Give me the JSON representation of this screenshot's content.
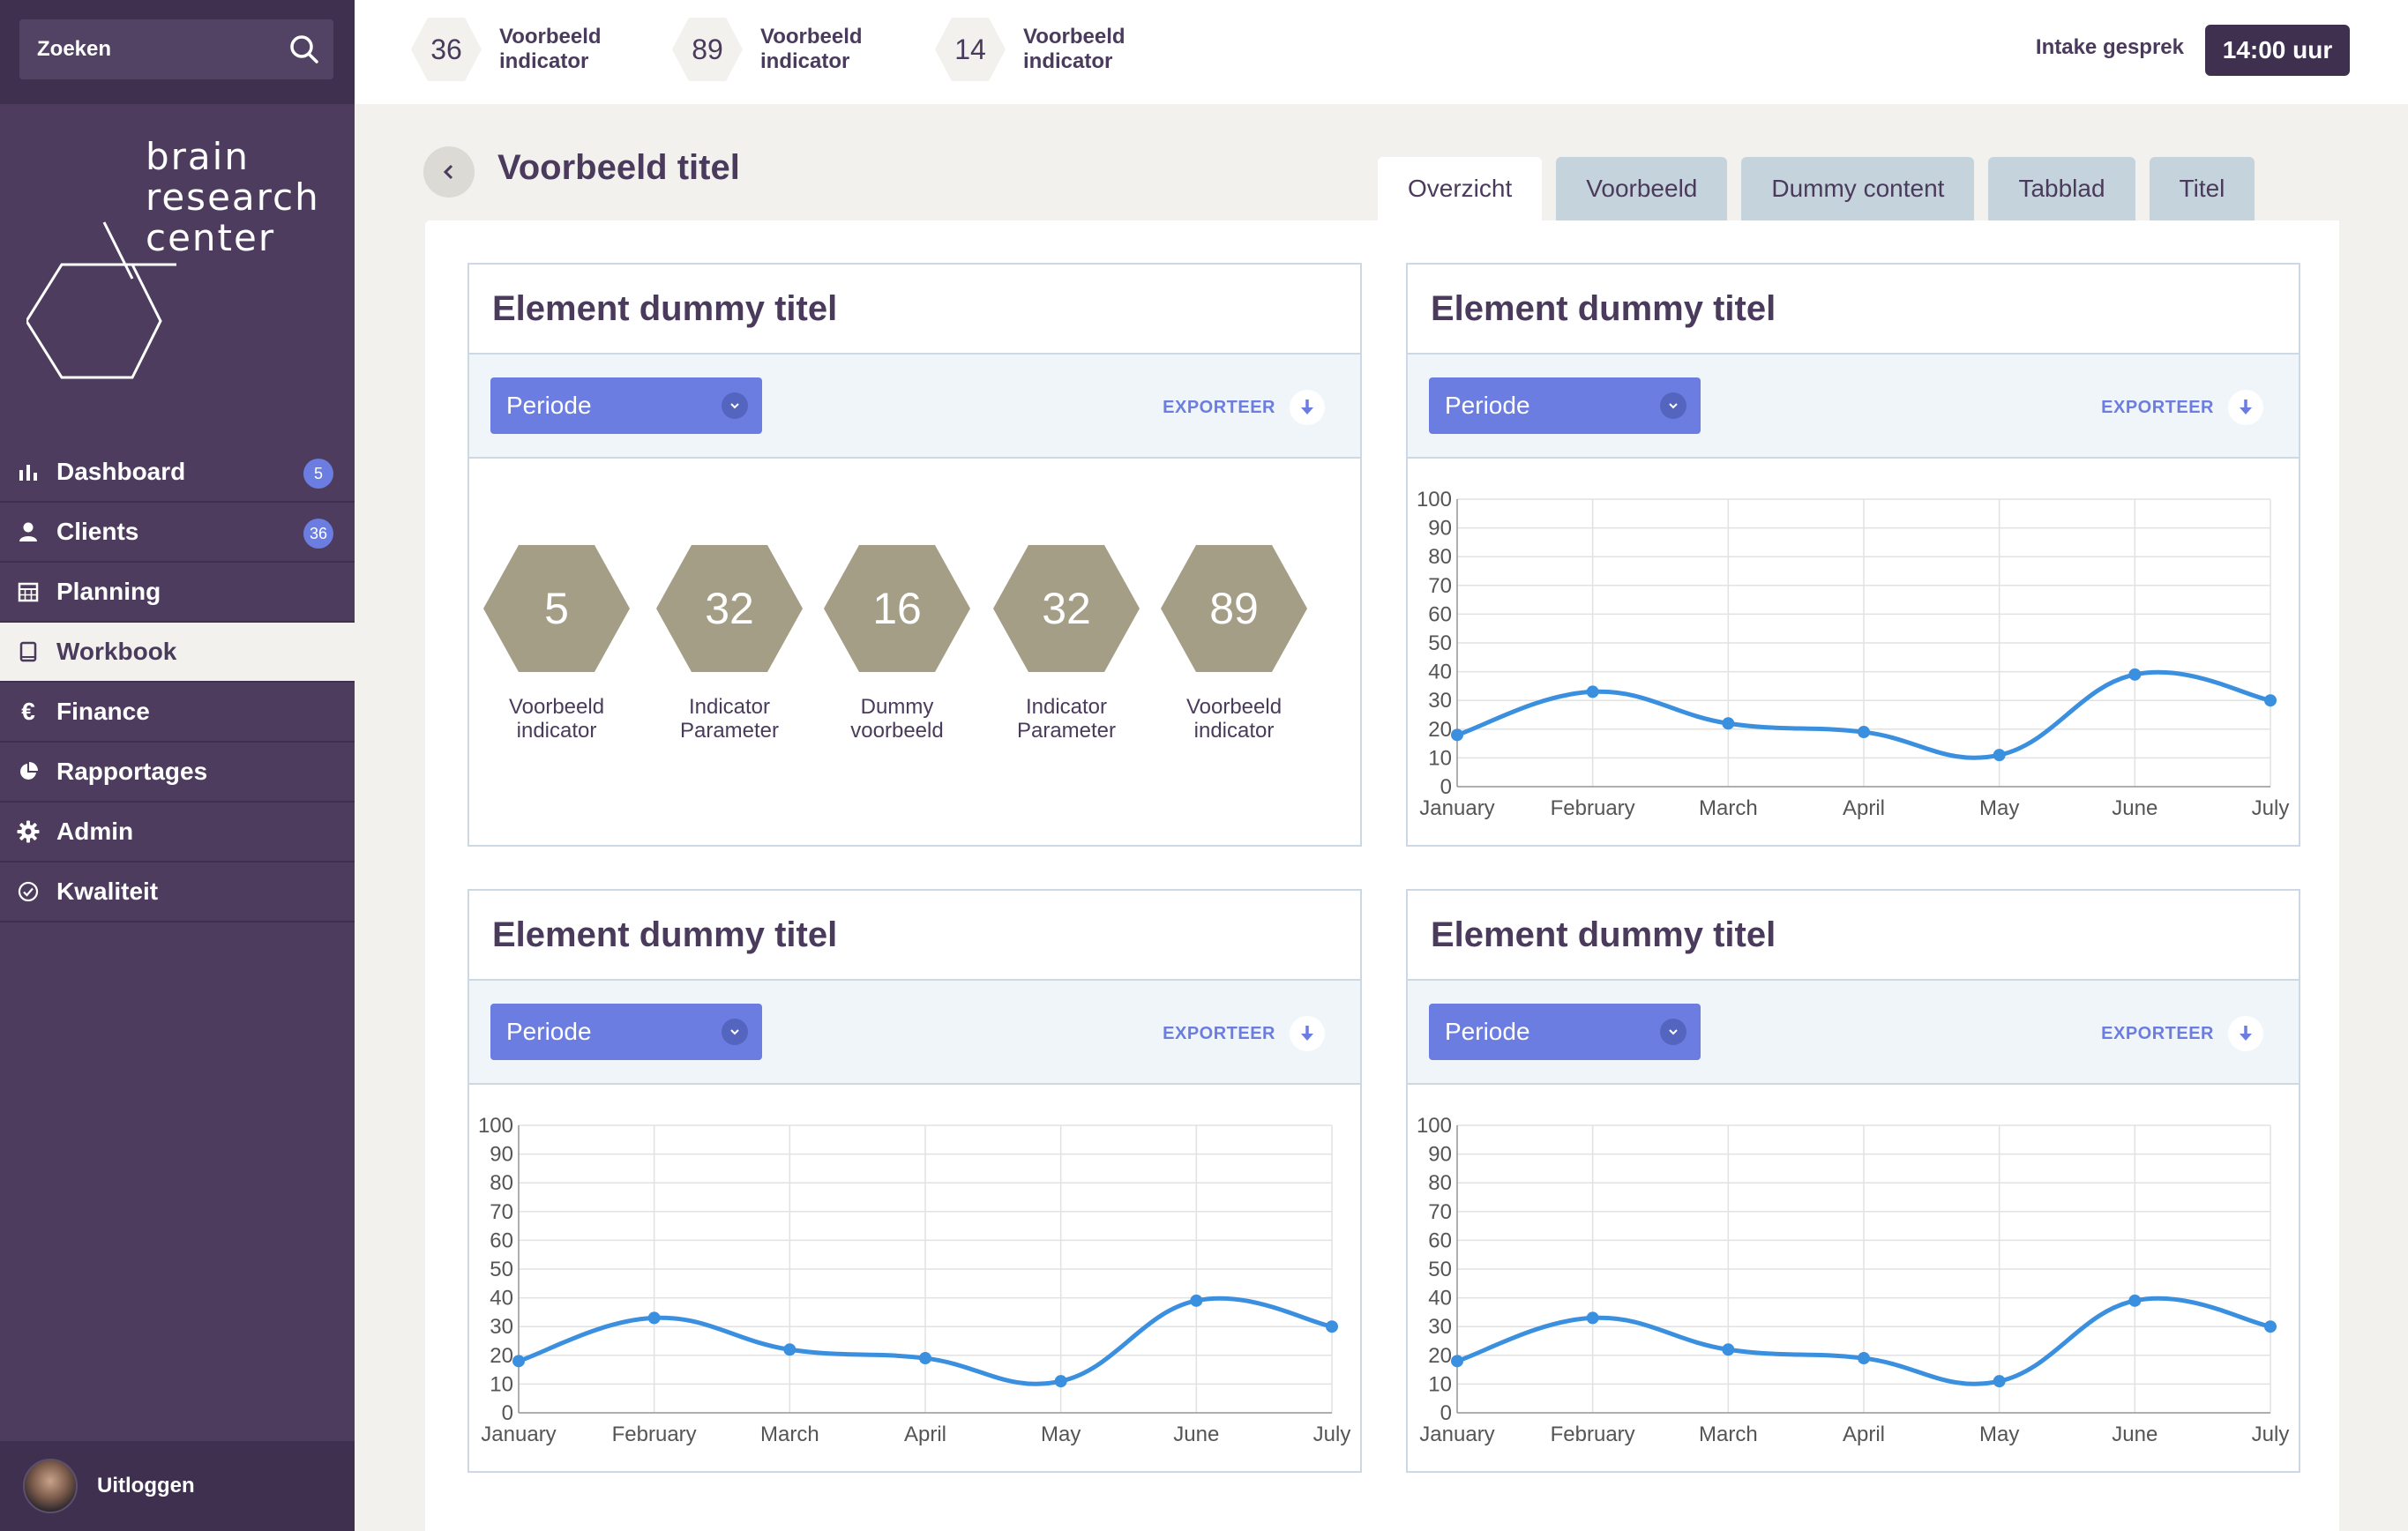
{
  "search": {
    "placeholder": "Zoeken"
  },
  "logo": {
    "line1": "brain",
    "line2": "research",
    "line3": "center"
  },
  "sidebar": {
    "items": [
      {
        "label": "Dashboard",
        "icon": "bar-chart-icon",
        "badge": "5"
      },
      {
        "label": "Clients",
        "icon": "user-icon",
        "badge": "36"
      },
      {
        "label": "Planning",
        "icon": "calendar-icon",
        "badge": ""
      },
      {
        "label": "Workbook",
        "icon": "book-icon",
        "badge": "",
        "active": true
      },
      {
        "label": "Finance",
        "icon": "euro-icon",
        "badge": ""
      },
      {
        "label": "Rapportages",
        "icon": "pie-chart-icon",
        "badge": ""
      },
      {
        "label": "Admin",
        "icon": "gear-icon",
        "badge": ""
      },
      {
        "label": "Kwaliteit",
        "icon": "check-circle-icon",
        "badge": ""
      }
    ],
    "logout": "Uitloggen"
  },
  "topbar": {
    "indicators": [
      {
        "value": "36",
        "label": "Voorbeeld indicator"
      },
      {
        "value": "89",
        "label": "Voorbeeld indicator"
      },
      {
        "value": "14",
        "label": "Voorbeeld indicator"
      }
    ],
    "intake_label": "Intake gesprek",
    "time": "14:00 uur"
  },
  "page": {
    "title": "Voorbeeld titel"
  },
  "tabs": [
    "Overzicht",
    "Voorbeeld",
    "Dummy content",
    "Tabblad",
    "Titel"
  ],
  "cards": [
    {
      "title": "Element dummy titel",
      "select": "Periode",
      "export": "EXPORTEER",
      "hexes": [
        {
          "value": "5",
          "label_1": "Voorbeeld",
          "label_2": "indicator"
        },
        {
          "value": "32",
          "label_1": "Indicator",
          "label_2": "Parameter"
        },
        {
          "value": "16",
          "label_1": "Dummy",
          "label_2": "voorbeeld"
        },
        {
          "value": "32",
          "label_1": "Indicator",
          "label_2": "Parameter"
        },
        {
          "value": "89",
          "label_1": "Voorbeeld",
          "label_2": "indicator"
        }
      ]
    },
    {
      "title": "Element dummy titel",
      "select": "Periode",
      "export": "EXPORTEER"
    },
    {
      "title": "Element dummy titel",
      "select": "Periode",
      "export": "EXPORTEER"
    },
    {
      "title": "Element dummy titel",
      "select": "Periode",
      "export": "EXPORTEER"
    }
  ],
  "colors": {
    "accent": "#6b7de0",
    "sidebar": "#4d3c5d",
    "line": "#3b8fdf",
    "hex": "#a59e87"
  },
  "chart_data": [
    {
      "type": "line",
      "categories": [
        "January",
        "February",
        "March",
        "April",
        "May",
        "June",
        "July"
      ],
      "series": [
        {
          "values": [
            18,
            33,
            22,
            19,
            11,
            39,
            30
          ]
        }
      ],
      "ylim": [
        0,
        100
      ],
      "yticks": [
        0,
        10,
        20,
        30,
        40,
        50,
        60,
        70,
        80,
        90,
        100
      ],
      "grid": true
    },
    {
      "type": "line",
      "categories": [
        "January",
        "February",
        "March",
        "April",
        "May",
        "June",
        "July"
      ],
      "series": [
        {
          "values": [
            18,
            33,
            22,
            19,
            11,
            39,
            30
          ]
        }
      ],
      "ylim": [
        0,
        100
      ],
      "yticks": [
        0,
        10,
        20,
        30,
        40,
        50,
        60,
        70,
        80,
        90,
        100
      ],
      "grid": true
    },
    {
      "type": "line",
      "categories": [
        "January",
        "February",
        "March",
        "April",
        "May",
        "June",
        "July"
      ],
      "series": [
        {
          "values": [
            18,
            33,
            22,
            19,
            11,
            39,
            30
          ]
        }
      ],
      "ylim": [
        0,
        100
      ],
      "yticks": [
        0,
        10,
        20,
        30,
        40,
        50,
        60,
        70,
        80,
        90,
        100
      ],
      "grid": true
    }
  ]
}
